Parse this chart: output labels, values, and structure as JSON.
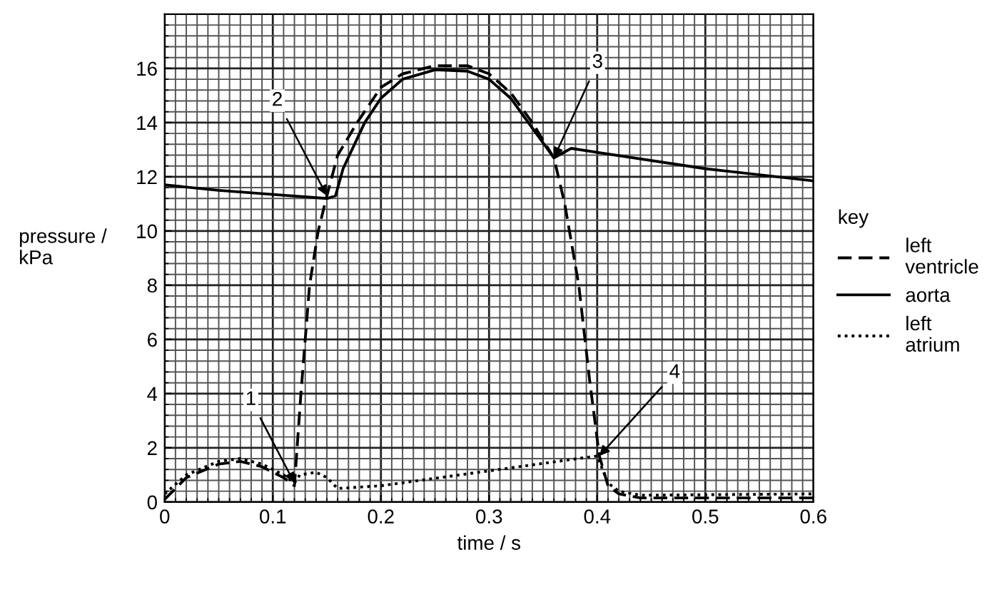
{
  "chart_data": {
    "type": "line",
    "xlabel": "time / s",
    "ylabel": "pressure /\nkPa",
    "legend_title": "key",
    "legend": "right",
    "grid": true,
    "xlim": [
      0,
      0.6
    ],
    "ylim": [
      0,
      18
    ],
    "xticks": [
      0,
      0.1,
      0.2,
      0.3,
      0.4,
      0.5,
      0.6
    ],
    "yticks": [
      0,
      2,
      4,
      6,
      8,
      10,
      12,
      14,
      16
    ],
    "series": [
      {
        "name": "left\nventricle",
        "color": "#000000",
        "line_style": "dashed",
        "x": [
          0,
          0.02,
          0.05,
          0.07,
          0.09,
          0.11,
          0.12,
          0.126,
          0.134,
          0.142,
          0.15,
          0.16,
          0.178,
          0.2,
          0.22,
          0.25,
          0.28,
          0.3,
          0.32,
          0.34,
          0.36,
          0.37,
          0.383,
          0.393,
          0.402,
          0.41,
          0.42,
          0.44,
          0.5,
          0.6
        ],
        "values": [
          0.1,
          0.9,
          1.4,
          1.5,
          1.3,
          0.9,
          0.6,
          4,
          8,
          10,
          11.3,
          12.8,
          14,
          15.3,
          15.8,
          16.1,
          16.1,
          15.8,
          15.1,
          14,
          12.7,
          11,
          8,
          4.5,
          1.7,
          0.6,
          0.3,
          0.15,
          0.15,
          0.15
        ]
      },
      {
        "name": "aorta",
        "color": "#000000",
        "line_style": "solid",
        "x": [
          0,
          0.05,
          0.1,
          0.15,
          0.158,
          0.165,
          0.185,
          0.2,
          0.22,
          0.25,
          0.28,
          0.3,
          0.32,
          0.34,
          0.36,
          0.376,
          0.4,
          0.5,
          0.6
        ],
        "values": [
          11.7,
          11.5,
          11.35,
          11.2,
          11.3,
          12.3,
          14,
          14.9,
          15.6,
          15.95,
          15.9,
          15.6,
          14.9,
          13.8,
          12.7,
          13.05,
          12.9,
          12.3,
          11.85
        ]
      },
      {
        "name": "left\natrium",
        "color": "#000000",
        "line_style": "dotted",
        "x": [
          0,
          0.02,
          0.05,
          0.07,
          0.09,
          0.11,
          0.12,
          0.125,
          0.14,
          0.15,
          0.16,
          0.2,
          0.3,
          0.4,
          0.405,
          0.41,
          0.42,
          0.44,
          0.6
        ],
        "values": [
          0.3,
          1.0,
          1.5,
          1.6,
          1.4,
          1.0,
          0.7,
          1.0,
          1.1,
          0.9,
          0.5,
          0.6,
          1.15,
          1.7,
          1.2,
          0.7,
          0.4,
          0.25,
          0.3
        ]
      }
    ],
    "annotations": [
      {
        "text": "1",
        "x": 0.12,
        "y": 0.7
      },
      {
        "text": "2",
        "x": 0.15,
        "y": 11.3
      },
      {
        "text": "3",
        "x": 0.36,
        "y": 12.7
      },
      {
        "text": "4",
        "x": 0.402,
        "y": 1.7
      }
    ]
  }
}
